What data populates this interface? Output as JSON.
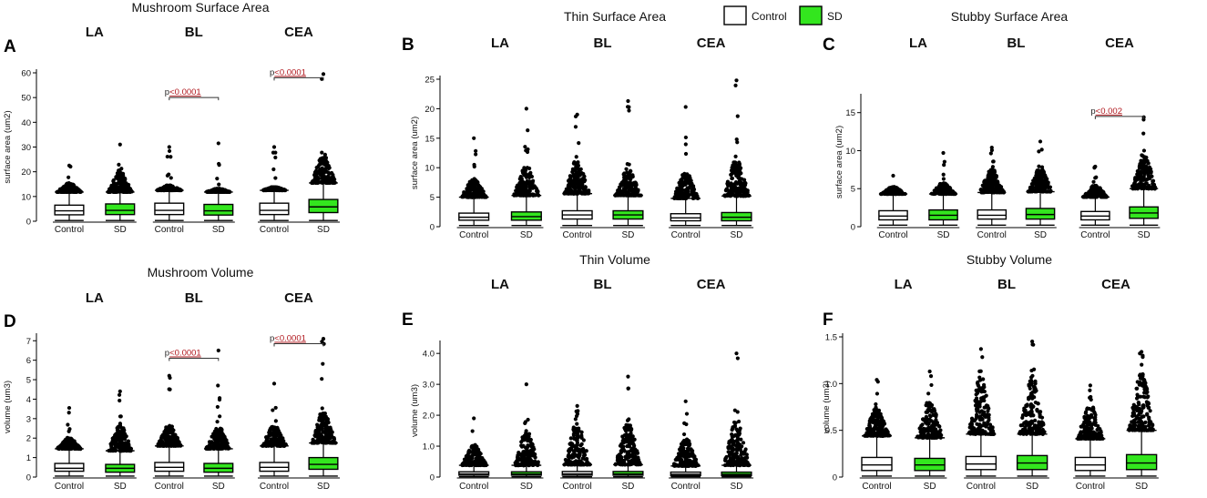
{
  "colors": {
    "control": "#ffffff",
    "sd": "#33e61e",
    "outline": "#000000",
    "pvalue": "#b0161c"
  },
  "legend": [
    {
      "label": "Control",
      "color": "#ffffff"
    },
    {
      "label": "SD",
      "color": "#33e61e"
    }
  ],
  "chart_data": [
    {
      "type": "box",
      "panel": "A",
      "title": "Mushroom Surface Area",
      "ylabel": "surface area (um2)",
      "ylim": [
        0,
        60
      ],
      "yticks": [
        0,
        10,
        20,
        30,
        40,
        50,
        60
      ],
      "groups": [
        "LA",
        "BL",
        "CEA"
      ],
      "categories": [
        "Control",
        "SD",
        "Control",
        "SD",
        "Control",
        "SD"
      ],
      "series": [
        {
          "name": "Control",
          "group": "LA",
          "whisker_low": 0.3,
          "q1": 2.6,
          "median": 4.2,
          "q3": 6.5,
          "whisker_high": 11.8,
          "cap_max": 15.3,
          "max": 22.5
        },
        {
          "name": "SD",
          "group": "LA",
          "whisker_low": 0.3,
          "q1": 2.7,
          "median": 4.4,
          "q3": 7.0,
          "whisker_high": 11.8,
          "cap_max": 19.5,
          "max": 31.0
        },
        {
          "name": "Control",
          "group": "BL",
          "whisker_low": 0.3,
          "q1": 2.7,
          "median": 4.4,
          "q3": 7.3,
          "whisker_high": 12.5,
          "cap_max": 14.5,
          "max": 30.0
        },
        {
          "name": "SD",
          "group": "BL",
          "whisker_low": 0.3,
          "q1": 2.5,
          "median": 4.2,
          "q3": 6.8,
          "whisker_high": 11.8,
          "cap_max": 13.2,
          "max": 31.5
        },
        {
          "name": "Control",
          "group": "CEA",
          "whisker_low": 0.3,
          "q1": 2.7,
          "median": 4.4,
          "q3": 7.3,
          "whisker_high": 12.5,
          "cap_max": 13.8,
          "max": 30.0
        },
        {
          "name": "SD",
          "group": "CEA",
          "whisker_low": 0.3,
          "q1": 3.5,
          "median": 5.8,
          "q3": 8.8,
          "whisker_high": 15.5,
          "cap_max": 26.0,
          "max": 59.5
        }
      ],
      "annotations": [
        {
          "group": "BL",
          "prefix": "p",
          "value": "<0.0001",
          "y": 50
        },
        {
          "group": "CEA",
          "prefix": "p",
          "value": "<0.0001",
          "y": 58
        }
      ]
    },
    {
      "type": "box",
      "panel": "B",
      "title": "Thin Surface Area",
      "ylabel": "surface area (um2)",
      "ylim": [
        0,
        25
      ],
      "yticks": [
        0,
        5,
        10,
        15,
        20,
        25
      ],
      "groups": [
        "LA",
        "BL",
        "CEA"
      ],
      "categories": [
        "Control",
        "SD",
        "Control",
        "SD",
        "Control",
        "SD"
      ],
      "series": [
        {
          "name": "Control",
          "group": "LA",
          "whisker_low": 0.2,
          "q1": 1.1,
          "median": 1.6,
          "q3": 2.3,
          "whisker_high": 5.0,
          "cap_max": 8.0,
          "max": 15.0
        },
        {
          "name": "SD",
          "group": "LA",
          "whisker_low": 0.2,
          "q1": 1.1,
          "median": 1.7,
          "q3": 2.5,
          "whisker_high": 5.3,
          "cap_max": 10.0,
          "max": 20.0
        },
        {
          "name": "Control",
          "group": "BL",
          "whisker_low": 0.2,
          "q1": 1.3,
          "median": 2.0,
          "q3": 2.7,
          "whisker_high": 5.6,
          "cap_max": 11.0,
          "max": 19.0
        },
        {
          "name": "SD",
          "group": "BL",
          "whisker_low": 0.2,
          "q1": 1.3,
          "median": 2.0,
          "q3": 2.7,
          "whisker_high": 5.3,
          "cap_max": 9.5,
          "max": 21.3
        },
        {
          "name": "Control",
          "group": "CEA",
          "whisker_low": 0.2,
          "q1": 1.0,
          "median": 1.5,
          "q3": 2.2,
          "whisker_high": 4.8,
          "cap_max": 9.0,
          "max": 20.3
        },
        {
          "name": "SD",
          "group": "CEA",
          "whisker_low": 0.2,
          "q1": 1.0,
          "median": 1.6,
          "q3": 2.4,
          "whisker_high": 5.2,
          "cap_max": 11.0,
          "max": 24.8
        }
      ],
      "annotations": []
    },
    {
      "type": "box",
      "panel": "C",
      "title": "Stubby Surface Area",
      "ylabel": "surface area (um2)",
      "ylim": [
        0,
        17
      ],
      "yticks": [
        0,
        5,
        10,
        15
      ],
      "groups": [
        "LA",
        "BL",
        "CEA"
      ],
      "categories": [
        "Control",
        "SD",
        "Control",
        "SD",
        "Control",
        "SD"
      ],
      "series": [
        {
          "name": "Control",
          "group": "LA",
          "whisker_low": 0.2,
          "q1": 0.9,
          "median": 1.4,
          "q3": 2.1,
          "whisker_high": 4.3,
          "cap_max": 5.2,
          "max": 6.7
        },
        {
          "name": "SD",
          "group": "LA",
          "whisker_low": 0.2,
          "q1": 0.9,
          "median": 1.5,
          "q3": 2.2,
          "whisker_high": 4.3,
          "cap_max": 5.7,
          "max": 9.7
        },
        {
          "name": "Control",
          "group": "BL",
          "whisker_low": 0.2,
          "q1": 1.0,
          "median": 1.5,
          "q3": 2.2,
          "whisker_high": 4.5,
          "cap_max": 7.5,
          "max": 10.4
        },
        {
          "name": "SD",
          "group": "BL",
          "whisker_low": 0.2,
          "q1": 1.0,
          "median": 1.6,
          "q3": 2.4,
          "whisker_high": 4.6,
          "cap_max": 7.5,
          "max": 11.2
        },
        {
          "name": "Control",
          "group": "CEA",
          "whisker_low": 0.2,
          "q1": 0.9,
          "median": 1.4,
          "q3": 2.0,
          "whisker_high": 3.9,
          "cap_max": 5.4,
          "max": 7.9
        },
        {
          "name": "SD",
          "group": "CEA",
          "whisker_low": 0.2,
          "q1": 1.1,
          "median": 1.8,
          "q3": 2.6,
          "whisker_high": 5.0,
          "cap_max": 9.5,
          "max": 14.4
        }
      ],
      "annotations": [
        {
          "group": "CEA",
          "prefix": "p",
          "value": "<0.002",
          "y": 14.5
        }
      ]
    },
    {
      "type": "box",
      "panel": "D",
      "title": "Mushroom Volume",
      "ylabel": "volume (um3)",
      "ylim": [
        0,
        7.2
      ],
      "yticks": [
        0,
        1,
        2,
        3,
        4,
        5,
        6,
        7
      ],
      "groups": [
        "LA",
        "BL",
        "CEA"
      ],
      "categories": [
        "Control",
        "SD",
        "Control",
        "SD",
        "Control",
        "SD"
      ],
      "series": [
        {
          "name": "Control",
          "group": "LA",
          "whisker_low": 0.05,
          "q1": 0.3,
          "median": 0.45,
          "q3": 0.7,
          "whisker_high": 1.45,
          "cap_max": 2.0,
          "max": 3.55
        },
        {
          "name": "SD",
          "group": "LA",
          "whisker_low": 0.05,
          "q1": 0.25,
          "median": 0.45,
          "q3": 0.65,
          "whisker_high": 1.35,
          "cap_max": 2.6,
          "max": 4.4
        },
        {
          "name": "Control",
          "group": "BL",
          "whisker_low": 0.05,
          "q1": 0.3,
          "median": 0.5,
          "q3": 0.75,
          "whisker_high": 1.6,
          "cap_max": 2.6,
          "max": 5.2
        },
        {
          "name": "SD",
          "group": "BL",
          "whisker_low": 0.05,
          "q1": 0.25,
          "median": 0.45,
          "q3": 0.7,
          "whisker_high": 1.45,
          "cap_max": 2.5,
          "max": 6.5
        },
        {
          "name": "Control",
          "group": "CEA",
          "whisker_low": 0.05,
          "q1": 0.3,
          "median": 0.5,
          "q3": 0.75,
          "whisker_high": 1.6,
          "cap_max": 2.6,
          "max": 4.8
        },
        {
          "name": "SD",
          "group": "CEA",
          "whisker_low": 0.05,
          "q1": 0.4,
          "median": 0.65,
          "q3": 1.0,
          "whisker_high": 1.75,
          "cap_max": 3.3,
          "max": 7.1
        }
      ],
      "annotations": [
        {
          "group": "BL",
          "prefix": "p",
          "value": "<0.0001",
          "y": 6.1
        },
        {
          "group": "CEA",
          "prefix": "p",
          "value": "<0.0001",
          "y": 6.85
        }
      ]
    },
    {
      "type": "box",
      "panel": "E",
      "title": "Thin Volume",
      "ylabel": "volume (um3)",
      "ylim": [
        0,
        4.3
      ],
      "yticks": [
        0,
        1,
        2,
        3,
        4
      ],
      "yticklabels": [
        "0",
        "1.0",
        "2.0",
        "3.0",
        "4.0"
      ],
      "groups": [
        "LA",
        "BL",
        "CEA"
      ],
      "categories": [
        "Control",
        "SD",
        "Control",
        "SD",
        "Control",
        "SD"
      ],
      "series": [
        {
          "name": "Control",
          "group": "LA",
          "whisker_low": 0.01,
          "q1": 0.06,
          "median": 0.1,
          "q3": 0.17,
          "whisker_high": 0.38,
          "cap_max": 1.0,
          "max": 1.9
        },
        {
          "name": "SD",
          "group": "LA",
          "whisker_low": 0.01,
          "q1": 0.06,
          "median": 0.1,
          "q3": 0.17,
          "whisker_high": 0.38,
          "cap_max": 1.4,
          "max": 3.0
        },
        {
          "name": "Control",
          "group": "BL",
          "whisker_low": 0.01,
          "q1": 0.06,
          "median": 0.1,
          "q3": 0.18,
          "whisker_high": 0.4,
          "cap_max": 1.7,
          "max": 2.3
        },
        {
          "name": "SD",
          "group": "BL",
          "whisker_low": 0.01,
          "q1": 0.06,
          "median": 0.1,
          "q3": 0.18,
          "whisker_high": 0.4,
          "cap_max": 1.7,
          "max": 3.25
        },
        {
          "name": "Control",
          "group": "CEA",
          "whisker_low": 0.01,
          "q1": 0.05,
          "median": 0.09,
          "q3": 0.16,
          "whisker_high": 0.36,
          "cap_max": 1.2,
          "max": 2.45
        },
        {
          "name": "SD",
          "group": "CEA",
          "whisker_low": 0.01,
          "q1": 0.05,
          "median": 0.09,
          "q3": 0.16,
          "whisker_high": 0.38,
          "cap_max": 1.8,
          "max": 4.0
        }
      ],
      "annotations": []
    },
    {
      "type": "box",
      "panel": "F",
      "title": "Stubby Volume",
      "ylabel": "volume (um3)",
      "ylim": [
        0,
        1.5
      ],
      "yticks": [
        0,
        0.5,
        1.0,
        1.5
      ],
      "yticklabels": [
        "0",
        "0.5",
        "1.0",
        "1.5"
      ],
      "groups": [
        "LA",
        "BL",
        "CEA"
      ],
      "categories": [
        "Control",
        "SD",
        "Control",
        "SD",
        "Control",
        "SD"
      ],
      "series": [
        {
          "name": "Control",
          "group": "LA",
          "whisker_low": 0.01,
          "q1": 0.07,
          "median": 0.13,
          "q3": 0.21,
          "whisker_high": 0.44,
          "cap_max": 0.72,
          "max": 1.04
        },
        {
          "name": "SD",
          "group": "LA",
          "whisker_low": 0.01,
          "q1": 0.07,
          "median": 0.13,
          "q3": 0.2,
          "whisker_high": 0.42,
          "cap_max": 0.8,
          "max": 1.13
        },
        {
          "name": "Control",
          "group": "BL",
          "whisker_low": 0.01,
          "q1": 0.08,
          "median": 0.14,
          "q3": 0.22,
          "whisker_high": 0.46,
          "cap_max": 1.05,
          "max": 1.37
        },
        {
          "name": "SD",
          "group": "BL",
          "whisker_low": 0.01,
          "q1": 0.08,
          "median": 0.15,
          "q3": 0.23,
          "whisker_high": 0.46,
          "cap_max": 1.05,
          "max": 1.45
        },
        {
          "name": "Control",
          "group": "CEA",
          "whisker_low": 0.01,
          "q1": 0.07,
          "median": 0.13,
          "q3": 0.21,
          "whisker_high": 0.41,
          "cap_max": 0.75,
          "max": 0.98
        },
        {
          "name": "SD",
          "group": "CEA",
          "whisker_low": 0.01,
          "q1": 0.08,
          "median": 0.15,
          "q3": 0.24,
          "whisker_high": 0.5,
          "cap_max": 1.1,
          "max": 1.34
        }
      ],
      "annotations": []
    }
  ]
}
